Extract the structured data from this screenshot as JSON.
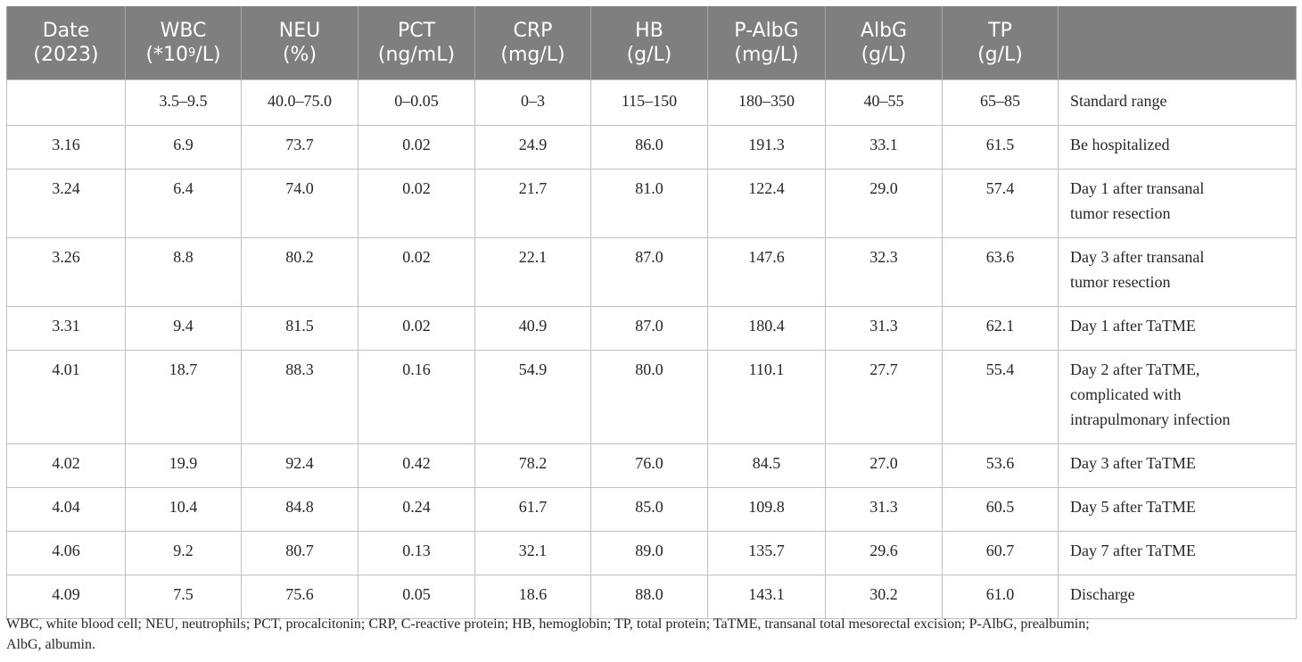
{
  "table": {
    "headers": [
      {
        "line1": "Date",
        "line2": "(2023)"
      },
      {
        "line1": "WBC",
        "line2_pre": "(*10",
        "line2_sup": "9",
        "line2_post": "/L)"
      },
      {
        "line1": "NEU",
        "line2": "(%)"
      },
      {
        "line1": "PCT",
        "line2": "(ng/mL)"
      },
      {
        "line1": "CRP",
        "line2": "(mg/L)"
      },
      {
        "line1": "HB",
        "line2": "(g/L)"
      },
      {
        "line1": "P-AlbG",
        "line2": "(mg/L)"
      },
      {
        "line1": "AlbG",
        "line2": "(g/L)"
      },
      {
        "line1": "TP",
        "line2": "(g/L)"
      },
      {
        "line1": "",
        "line2": ""
      }
    ],
    "standard_row": [
      "",
      "3.5–9.5",
      "40.0–75.0",
      "0–0.05",
      "0–3",
      "115–150",
      "180–350",
      "40–55",
      "65–85",
      "Standard range"
    ],
    "rows": [
      {
        "cells": [
          "3.16",
          "6.9",
          "73.7",
          "0.02",
          "24.9",
          "86.0",
          "191.3",
          "33.1",
          "61.5"
        ],
        "note": [
          "Be hospitalized"
        ]
      },
      {
        "cells": [
          "3.24",
          "6.4",
          "74.0",
          "0.02",
          "21.7",
          "81.0",
          "122.4",
          "29.0",
          "57.4"
        ],
        "note": [
          "Day 1 after transanal",
          "tumor resection"
        ]
      },
      {
        "cells": [
          "3.26",
          "8.8",
          "80.2",
          "0.02",
          "22.1",
          "87.0",
          "147.6",
          "32.3",
          "63.6"
        ],
        "note": [
          "Day 3 after transanal",
          "tumor resection"
        ]
      },
      {
        "cells": [
          "3.31",
          "9.4",
          "81.5",
          "0.02",
          "40.9",
          "87.0",
          "180.4",
          "31.3",
          "62.1"
        ],
        "note": [
          "Day 1 after TaTME"
        ]
      },
      {
        "cells": [
          "4.01",
          "18.7",
          "88.3",
          "0.16",
          "54.9",
          "80.0",
          "110.1",
          "27.7",
          "55.4"
        ],
        "note": [
          "Day 2 after TaTME,",
          "complicated with",
          "intrapulmonary infection"
        ]
      },
      {
        "cells": [
          "4.02",
          "19.9",
          "92.4",
          "0.42",
          "78.2",
          "76.0",
          "84.5",
          "27.0",
          "53.6"
        ],
        "note": [
          "Day 3 after TaTME"
        ]
      },
      {
        "cells": [
          "4.04",
          "10.4",
          "84.8",
          "0.24",
          "61.7",
          "85.0",
          "109.8",
          "31.3",
          "60.5"
        ],
        "note": [
          "Day 5 after TaTME"
        ]
      },
      {
        "cells": [
          "4.06",
          "9.2",
          "80.7",
          "0.13",
          "32.1",
          "89.0",
          "135.7",
          "29.6",
          "60.7"
        ],
        "note": [
          "Day 7 after TaTME"
        ]
      },
      {
        "cells": [
          "4.09",
          "7.5",
          "75.6",
          "0.05",
          "18.6",
          "88.0",
          "143.1",
          "30.2",
          "61.0"
        ],
        "note": [
          "Discharge"
        ]
      }
    ]
  },
  "footnote": {
    "line1": "WBC, white blood cell; NEU, neutrophils; PCT, procalcitonin; CRP, C-reactive protein; HB, hemoglobin; TP, total protein; TaTME, transanal total mesorectal excision; P-AlbG, prealbumin;",
    "line2": "AlbG, albumin."
  },
  "colors": {
    "header_bg": "#7f7f7f",
    "header_text": "#ffffff",
    "grid": "#bfbfbf",
    "text": "#262626"
  }
}
